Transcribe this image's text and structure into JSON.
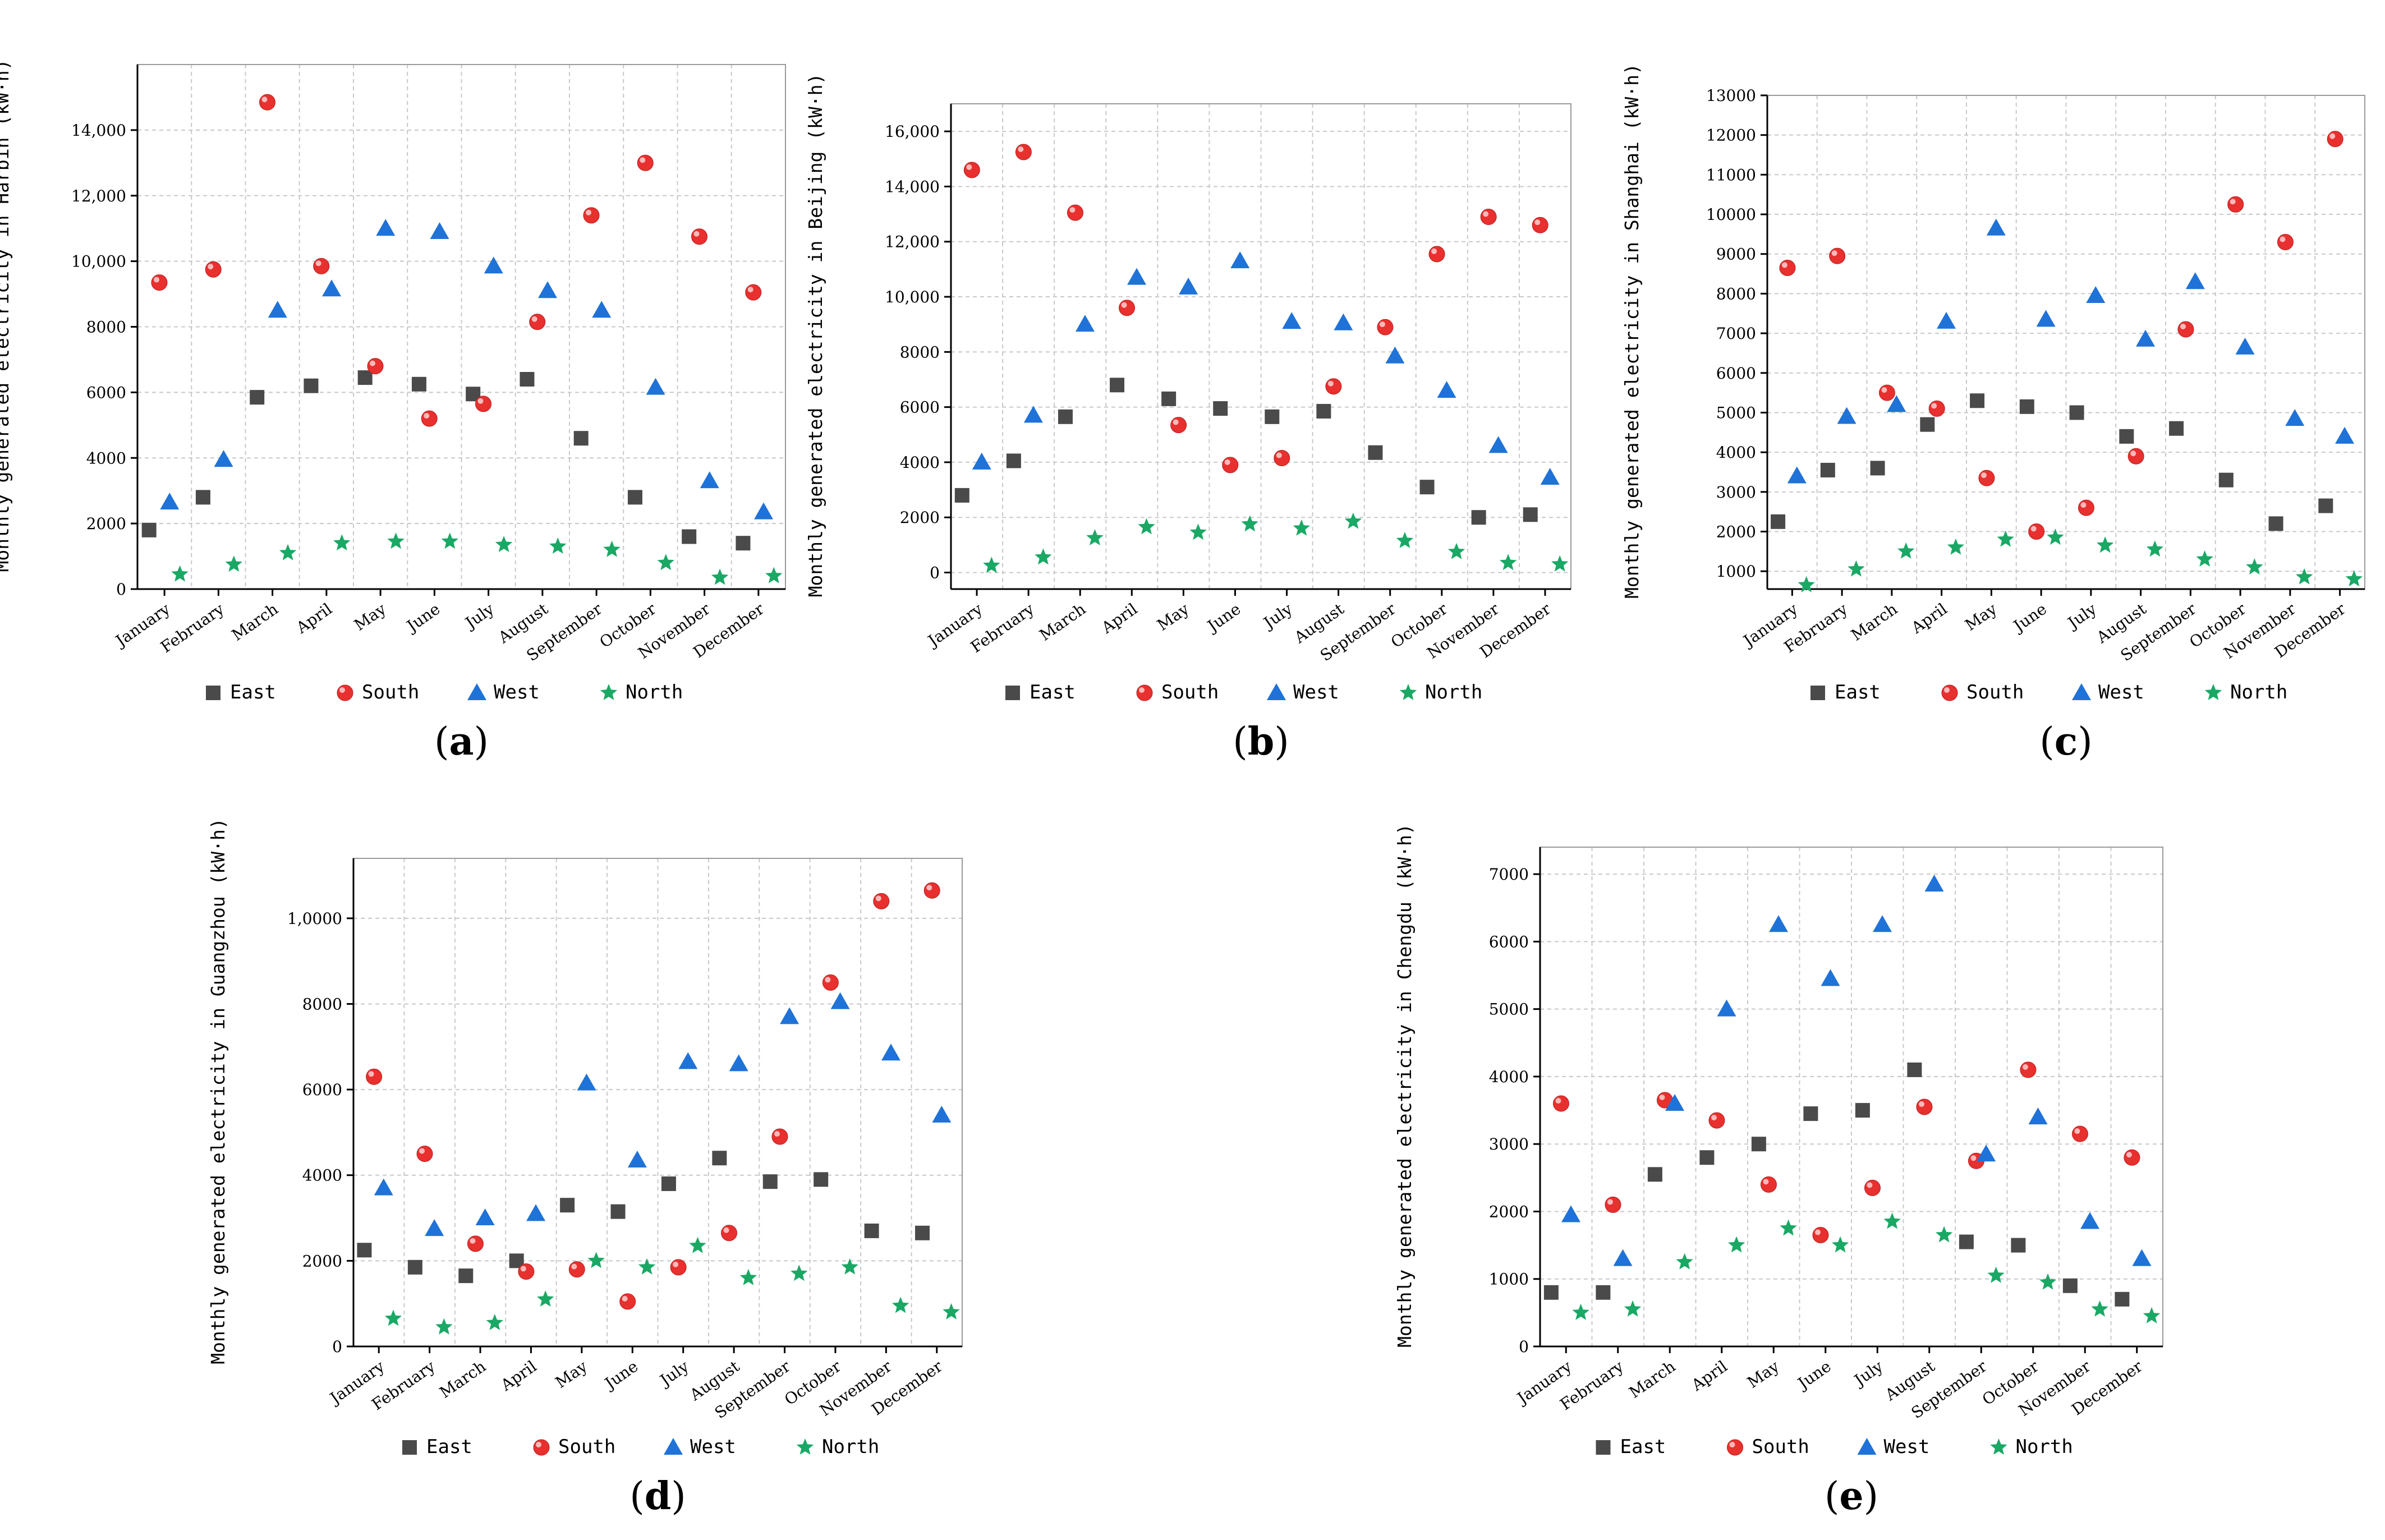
{
  "figure": {
    "months": [
      "January",
      "February",
      "March",
      "April",
      "May",
      "June",
      "July",
      "August",
      "September",
      "October",
      "November",
      "December"
    ],
    "series_names": [
      "East",
      "South",
      "West",
      "North"
    ],
    "colors": {
      "East": "#4a4a4a",
      "South": "#e8302e",
      "West": "#1f72d8",
      "North": "#1aa865",
      "grid": "#c8c8c8",
      "axis": "#000000"
    }
  },
  "chart_data": [
    {
      "id": "a",
      "type": "scatter",
      "letter": "a",
      "ylabel": "Monthly generated electricity in Harbin (kW·h)",
      "ylim": [
        0,
        16000
      ],
      "yticks": [
        0,
        2000,
        4000,
        6000,
        8000,
        10000,
        12000,
        14000
      ],
      "ytick_labels": [
        "0",
        "2000",
        "4000",
        "6000",
        "8000",
        "10,000",
        "12,000",
        "14,000"
      ],
      "categories": [
        "January",
        "February",
        "March",
        "April",
        "May",
        "June",
        "July",
        "August",
        "September",
        "October",
        "November",
        "December"
      ],
      "series": [
        {
          "name": "East",
          "values": [
            1800,
            2800,
            5850,
            6200,
            6450,
            6250,
            5950,
            6400,
            4600,
            2800,
            1600,
            1400
          ]
        },
        {
          "name": "South",
          "values": [
            9350,
            9750,
            14850,
            9850,
            6800,
            5200,
            5650,
            8150,
            11400,
            13000,
            10750,
            9050
          ]
        },
        {
          "name": "West",
          "values": [
            2650,
            3950,
            8500,
            9150,
            11000,
            10900,
            9850,
            9100,
            8500,
            6150,
            3300,
            2350
          ]
        },
        {
          "name": "North",
          "values": [
            450,
            750,
            1100,
            1400,
            1450,
            1450,
            1350,
            1300,
            1200,
            800,
            350,
            400
          ]
        }
      ]
    },
    {
      "id": "b",
      "type": "scatter",
      "letter": "b",
      "ylabel": "Monthly generated electricity in Beijing (kW·h)",
      "ylim": [
        -600,
        17000
      ],
      "yticks": [
        0,
        2000,
        4000,
        6000,
        8000,
        10000,
        12000,
        14000,
        16000
      ],
      "ytick_labels": [
        "0",
        "2000",
        "4000",
        "6000",
        "8000",
        "10,000",
        "12,000",
        "14,000",
        "16,000"
      ],
      "categories": [
        "January",
        "February",
        "March",
        "April",
        "May",
        "June",
        "July",
        "August",
        "September",
        "October",
        "November",
        "December"
      ],
      "series": [
        {
          "name": "East",
          "values": [
            2800,
            4050,
            5650,
            6800,
            6300,
            5950,
            5650,
            5850,
            4350,
            3100,
            2000,
            2100
          ]
        },
        {
          "name": "South",
          "values": [
            14600,
            15250,
            13050,
            9600,
            5350,
            3900,
            4150,
            6750,
            8900,
            11550,
            12900,
            12600
          ]
        },
        {
          "name": "West",
          "values": [
            4000,
            5700,
            9000,
            10700,
            10350,
            11300,
            9100,
            9050,
            7850,
            6600,
            4600,
            3450
          ]
        },
        {
          "name": "North",
          "values": [
            250,
            550,
            1250,
            1650,
            1450,
            1750,
            1600,
            1850,
            1150,
            750,
            350,
            300
          ]
        }
      ]
    },
    {
      "id": "c",
      "type": "scatter",
      "letter": "c",
      "ylabel": "Monthly generated electricity in Shanghai (kW·h)",
      "ylim": [
        550,
        13000
      ],
      "yticks": [
        1000,
        2000,
        3000,
        4000,
        5000,
        6000,
        7000,
        8000,
        9000,
        10000,
        11000,
        12000,
        13000
      ],
      "ytick_labels": [
        "1000",
        "2000",
        "3000",
        "4000",
        "5000",
        "6000",
        "7000",
        "8000",
        "9000",
        "10000",
        "11000",
        "12000",
        "13000"
      ],
      "categories": [
        "January",
        "February",
        "March",
        "April",
        "May",
        "June",
        "July",
        "August",
        "September",
        "October",
        "November",
        "December"
      ],
      "series": [
        {
          "name": "East",
          "values": [
            2250,
            3550,
            3600,
            4700,
            5300,
            5150,
            5000,
            4400,
            4600,
            3300,
            2200,
            2650
          ]
        },
        {
          "name": "South",
          "values": [
            8650,
            8950,
            5500,
            5100,
            3350,
            2000,
            2600,
            3900,
            7100,
            10250,
            9300,
            11900
          ]
        },
        {
          "name": "West",
          "values": [
            3400,
            4900,
            5200,
            7300,
            9650,
            7350,
            7950,
            6850,
            8300,
            6650,
            4850,
            4400
          ]
        },
        {
          "name": "North",
          "values": [
            650,
            1050,
            1500,
            1600,
            1800,
            1850,
            1650,
            1550,
            1300,
            1100,
            850,
            800
          ]
        }
      ]
    },
    {
      "id": "d",
      "type": "scatter",
      "letter": "d",
      "ylabel": "Monthly generated electricity in Guangzhou (kW·h)",
      "ylim": [
        0,
        11400
      ],
      "yticks": [
        0,
        2000,
        4000,
        6000,
        8000,
        10000
      ],
      "ytick_labels": [
        "0",
        "2000",
        "4000",
        "6000",
        "8000",
        "1,0000"
      ],
      "categories": [
        "January",
        "February",
        "March",
        "April",
        "May",
        "June",
        "July",
        "August",
        "September",
        "October",
        "November",
        "December"
      ],
      "series": [
        {
          "name": "East",
          "values": [
            2250,
            1850,
            1650,
            2000,
            3300,
            3150,
            3800,
            4400,
            3850,
            3900,
            2700,
            2650
          ]
        },
        {
          "name": "South",
          "values": [
            6300,
            4500,
            2400,
            1750,
            1800,
            1050,
            1850,
            2650,
            4900,
            8500,
            10400,
            10650
          ]
        },
        {
          "name": "West",
          "values": [
            3700,
            2750,
            3000,
            3100,
            6150,
            4350,
            6650,
            6600,
            7700,
            8050,
            6850,
            5400
          ]
        },
        {
          "name": "North",
          "values": [
            650,
            450,
            550,
            1100,
            2000,
            1850,
            2350,
            1600,
            1700,
            1850,
            950,
            800
          ]
        }
      ]
    },
    {
      "id": "e",
      "type": "scatter",
      "letter": "e",
      "ylabel": "Monthly generated electricity in Chengdu (kW·h)",
      "ylim": [
        0,
        7400
      ],
      "yticks": [
        0,
        1000,
        2000,
        3000,
        4000,
        5000,
        6000,
        7000
      ],
      "ytick_labels": [
        "0",
        "1000",
        "2000",
        "3000",
        "4000",
        "5000",
        "6000",
        "7000"
      ],
      "categories": [
        "January",
        "February",
        "March",
        "April",
        "May",
        "June",
        "July",
        "August",
        "September",
        "October",
        "November",
        "December"
      ],
      "series": [
        {
          "name": "East",
          "values": [
            800,
            800,
            2550,
            2800,
            3000,
            3450,
            3500,
            4100,
            1550,
            1500,
            900,
            700
          ]
        },
        {
          "name": "South",
          "values": [
            3600,
            2100,
            3650,
            3350,
            2400,
            1650,
            2350,
            3550,
            2750,
            4100,
            3150,
            2800
          ]
        },
        {
          "name": "West",
          "values": [
            1950,
            1300,
            3600,
            5000,
            6250,
            5450,
            6250,
            6850,
            2850,
            3400,
            1850,
            1300
          ]
        },
        {
          "name": "North",
          "values": [
            500,
            550,
            1250,
            1500,
            1750,
            1500,
            1850,
            1650,
            1050,
            950,
            550,
            450
          ]
        }
      ]
    }
  ]
}
